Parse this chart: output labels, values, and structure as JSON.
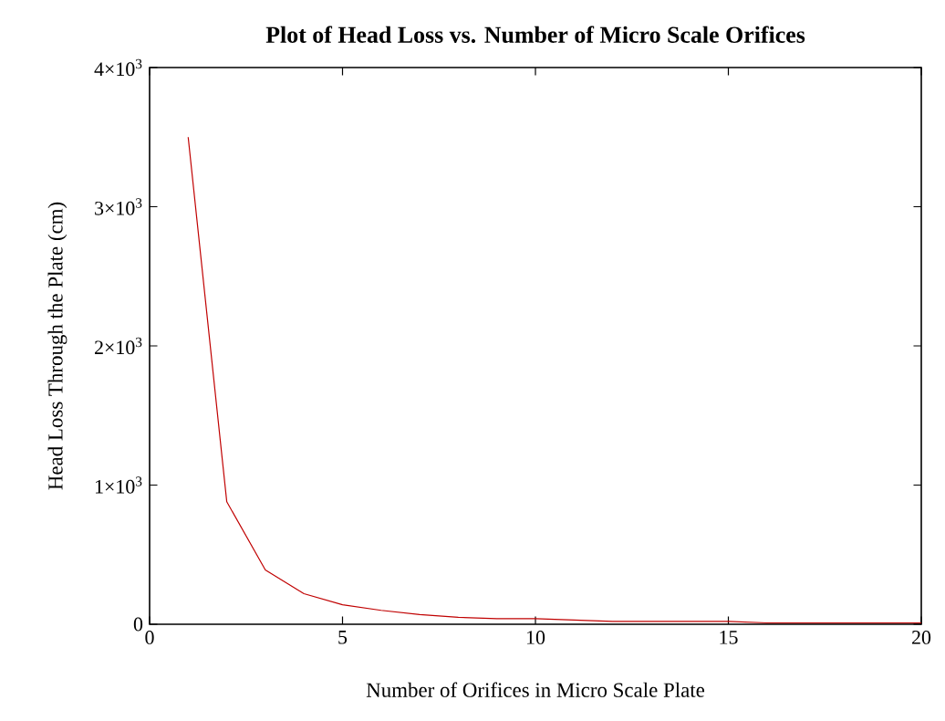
{
  "chart_data": {
    "type": "line",
    "title": "Plot of Head Loss vs. Number of Micro Scale Orifices",
    "xlabel": "Number of Orifices in Micro Scale Plate",
    "ylabel": "Head Loss Through the Plate (cm)",
    "x": [
      1,
      2,
      3,
      4,
      5,
      6,
      7,
      8,
      9,
      10,
      11,
      12,
      13,
      14,
      15,
      16,
      17,
      18,
      19,
      20
    ],
    "series": [
      {
        "color": "#c00000",
        "values": [
          3500,
          880,
          390,
          220,
          140,
          100,
          70,
          50,
          40,
          40,
          30,
          20,
          20,
          20,
          20,
          10,
          10,
          10,
          10,
          10
        ]
      }
    ],
    "xlim": [
      0,
      20
    ],
    "xticks": [
      0,
      5,
      10,
      15,
      20
    ],
    "ylim": [
      0,
      4000
    ],
    "yticks": [
      0,
      {
        "value": 1000,
        "label": "1×10$^{3}$"
      },
      {
        "value": 2000,
        "label": "2×10$^{3}$"
      },
      {
        "value": 3000,
        "label": "3×10$^{3}$"
      },
      {
        "value": 4000,
        "label": "4×10$^{3}$"
      }
    ],
    "grid": false,
    "marker": "none",
    "line_style": "solid"
  }
}
